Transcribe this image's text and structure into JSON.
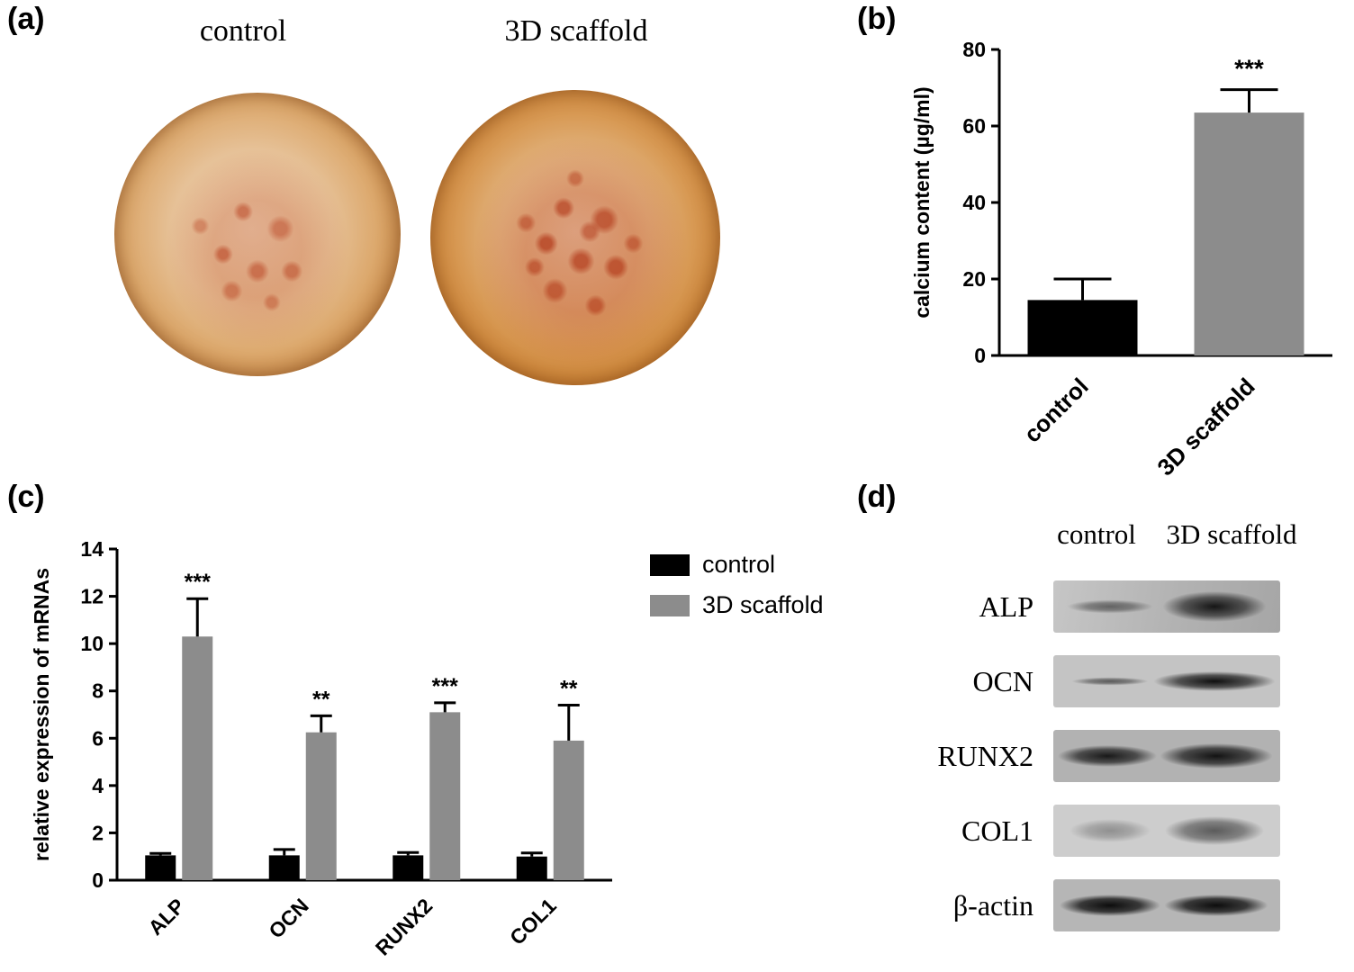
{
  "figure": {
    "panel_a": {
      "tag": "(a)",
      "dish_labels": [
        "control",
        "3D scaffold"
      ]
    },
    "panel_b": {
      "tag": "(b)"
    },
    "panel_c": {
      "tag": "(c)"
    },
    "panel_d": {
      "tag": "(d)",
      "col_headers": [
        "control",
        "3D scaffold"
      ],
      "row_labels": [
        "ALP",
        "OCN",
        "RUNX2",
        "COL1",
        "β-actin"
      ]
    }
  },
  "colors": {
    "control_bar": "#000000",
    "scaffold_bar": "#8c8c8c",
    "stain_red": "#b23a12",
    "dish_rim_brown": "#712c09"
  },
  "chart_data": [
    {
      "id": "chart-b",
      "type": "bar",
      "categories": [
        "control",
        "3D scaffold"
      ],
      "series": [
        {
          "name": "calcium content",
          "colors": [
            "#000000",
            "#8c8c8c"
          ],
          "values": [
            14.5,
            63.5
          ],
          "errors": [
            5.5,
            6.0
          ],
          "annotations": [
            "",
            "***"
          ]
        }
      ],
      "ylabel": "calcium content (µg/ml)",
      "ylim": [
        0,
        80
      ],
      "yticks": [
        0,
        20,
        40,
        60,
        80
      ],
      "xtick_rotation": -45,
      "legend_position": "none",
      "grid": false
    },
    {
      "id": "chart-c",
      "type": "grouped_bar",
      "categories": [
        "ALP",
        "OCN",
        "RUNX2",
        "COL1"
      ],
      "series": [
        {
          "name": "control",
          "color": "#000000",
          "values": [
            1.05,
            1.05,
            1.05,
            1.0
          ],
          "errors": [
            0.08,
            0.25,
            0.12,
            0.15
          ],
          "annotations": [
            "",
            "",
            "",
            ""
          ]
        },
        {
          "name": "3D scaffold",
          "color": "#8c8c8c",
          "values": [
            10.3,
            6.25,
            7.1,
            5.9
          ],
          "errors": [
            1.6,
            0.7,
            0.4,
            1.5
          ],
          "annotations": [
            "***",
            "**",
            "***",
            "**"
          ]
        }
      ],
      "ylabel": "relative expression of mRNAs",
      "ylim": [
        0,
        14
      ],
      "yticks": [
        0,
        2,
        4,
        6,
        8,
        10,
        12,
        14
      ],
      "xtick_rotation": -45,
      "legend_position": "upper-right",
      "grid": false
    }
  ]
}
